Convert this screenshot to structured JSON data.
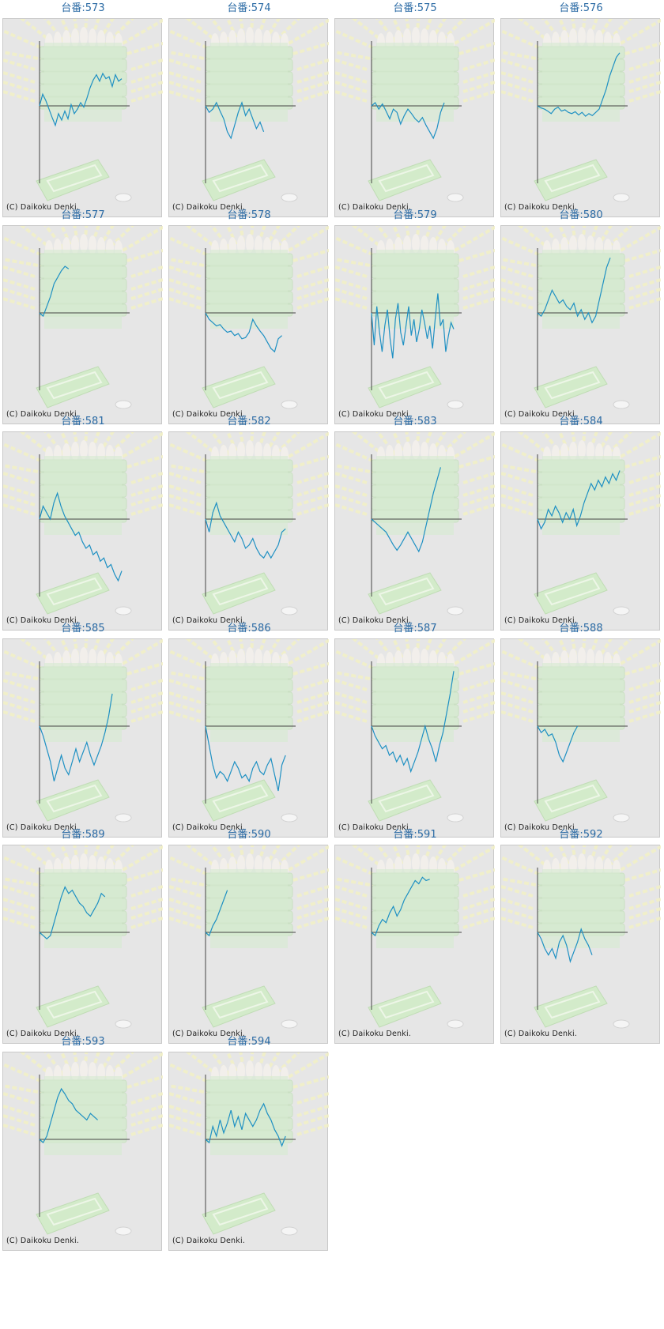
{
  "copyright": "(C) Daikoku Denki.",
  "colors": {
    "line": "#1e90c3",
    "axis": "#444444",
    "title": "#2a6aa4",
    "panel": "#e6e6e6"
  },
  "chart_data": [
    {
      "type": "line",
      "title": "台番:573",
      "y": [
        0,
        18,
        8,
        -5,
        -18,
        -30,
        -12,
        -22,
        -8,
        -20,
        2,
        -12,
        -5,
        5,
        -2,
        12,
        28,
        40,
        48,
        38,
        50,
        42,
        45,
        30,
        48,
        38,
        42
      ]
    },
    {
      "type": "line",
      "title": "台番:574",
      "y": [
        0,
        -10,
        -5,
        5,
        -8,
        -20,
        -40,
        -50,
        -30,
        -10,
        5,
        -15,
        -5,
        -20,
        -35,
        -25,
        -40
      ]
    },
    {
      "type": "line",
      "title": "台番:575",
      "y": [
        0,
        5,
        -5,
        3,
        -8,
        -20,
        -5,
        -10,
        -28,
        -15,
        -5,
        -12,
        -20,
        -25,
        -18,
        -30,
        -40,
        -50,
        -35,
        -10,
        5
      ]
    },
    {
      "type": "line",
      "title": "台番:576",
      "y": [
        0,
        -3,
        -5,
        -8,
        -12,
        -5,
        -2,
        -8,
        -6,
        -10,
        -12,
        -9,
        -14,
        -10,
        -16,
        -12,
        -15,
        -10,
        -5,
        10,
        25,
        45,
        60,
        75,
        82
      ]
    },
    {
      "type": "line",
      "title": "台番:577",
      "y": [
        0,
        -5,
        10,
        25,
        45,
        55,
        65,
        72,
        68
      ]
    },
    {
      "type": "line",
      "title": "台番:578",
      "y": [
        0,
        -10,
        -15,
        -20,
        -18,
        -25,
        -30,
        -28,
        -35,
        -32,
        -40,
        -38,
        -30,
        -10,
        -20,
        -28,
        -35,
        -45,
        -55,
        -60,
        -40,
        -35
      ]
    },
    {
      "type": "line",
      "title": "台番:579",
      "y": [
        0,
        -50,
        10,
        -30,
        -60,
        -20,
        5,
        -40,
        -70,
        -10,
        15,
        -30,
        -50,
        -20,
        10,
        -35,
        -10,
        -45,
        -25,
        5,
        -15,
        -40,
        -20,
        -55,
        -10,
        30,
        -20,
        -10,
        -60,
        -35,
        -15,
        -25
      ]
    },
    {
      "type": "line",
      "title": "台番:580",
      "y": [
        0,
        -5,
        5,
        20,
        35,
        25,
        15,
        20,
        10,
        5,
        15,
        -5,
        5,
        -10,
        0,
        -15,
        -5,
        20,
        45,
        70,
        85
      ]
    },
    {
      "type": "line",
      "title": "台番:581",
      "y": [
        0,
        20,
        10,
        0,
        25,
        40,
        20,
        5,
        -5,
        -15,
        -25,
        -20,
        -35,
        -45,
        -40,
        -55,
        -50,
        -65,
        -60,
        -75,
        -70,
        -85,
        -95,
        -80
      ]
    },
    {
      "type": "line",
      "title": "台番:582",
      "y": [
        0,
        -20,
        10,
        25,
        5,
        -5,
        -15,
        -25,
        -35,
        -20,
        -30,
        -45,
        -40,
        -30,
        -45,
        -55,
        -60,
        -50,
        -60,
        -50,
        -40,
        -20,
        -15
      ]
    },
    {
      "type": "line",
      "title": "台番:583",
      "y": [
        0,
        -5,
        -10,
        -15,
        -20,
        -30,
        -40,
        -48,
        -40,
        -30,
        -20,
        -30,
        -40,
        -50,
        -35,
        -10,
        15,
        40,
        60,
        80
      ]
    },
    {
      "type": "line",
      "title": "台番:584",
      "y": [
        0,
        -15,
        -5,
        15,
        5,
        20,
        10,
        -5,
        10,
        0,
        15,
        -10,
        5,
        25,
        40,
        55,
        45,
        60,
        50,
        65,
        55,
        70,
        60,
        75
      ]
    },
    {
      "type": "line",
      "title": "台番:585",
      "y": [
        0,
        -15,
        -35,
        -55,
        -85,
        -65,
        -45,
        -65,
        -75,
        -55,
        -35,
        -55,
        -40,
        -25,
        -45,
        -60,
        -45,
        -30,
        -10,
        15,
        50
      ]
    },
    {
      "type": "line",
      "title": "台番:586",
      "y": [
        0,
        -30,
        -60,
        -80,
        -70,
        -75,
        -85,
        -70,
        -55,
        -65,
        -80,
        -75,
        -85,
        -65,
        -55,
        -70,
        -75,
        -60,
        -50,
        -75,
        -100,
        -60,
        -45
      ]
    },
    {
      "type": "line",
      "title": "台番:587",
      "y": [
        0,
        -15,
        -25,
        -35,
        -30,
        -45,
        -40,
        -55,
        -45,
        -60,
        -50,
        -70,
        -55,
        -40,
        -20,
        0,
        -20,
        -35,
        -55,
        -30,
        -10,
        20,
        50,
        85
      ]
    },
    {
      "type": "line",
      "title": "台番:588",
      "y": [
        0,
        -10,
        -5,
        -15,
        -12,
        -25,
        -45,
        -55,
        -40,
        -25,
        -10,
        0
      ]
    },
    {
      "type": "line",
      "title": "台番:589",
      "y": [
        0,
        -5,
        -10,
        -5,
        15,
        35,
        55,
        70,
        60,
        65,
        55,
        45,
        40,
        30,
        25,
        35,
        45,
        60,
        55
      ]
    },
    {
      "type": "line",
      "title": "台番:590",
      "y": [
        0,
        -5,
        10,
        20,
        35,
        50,
        65
      ]
    },
    {
      "type": "line",
      "title": "台番:591",
      "y": [
        0,
        -5,
        10,
        20,
        15,
        30,
        40,
        25,
        35,
        50,
        60,
        70,
        80,
        75,
        85,
        80,
        82
      ]
    },
    {
      "type": "line",
      "title": "台番:592",
      "y": [
        0,
        -10,
        -25,
        -35,
        -25,
        -40,
        -15,
        -5,
        -20,
        -45,
        -30,
        -15,
        5,
        -10,
        -20,
        -35
      ]
    },
    {
      "type": "line",
      "title": "台番:593",
      "y": [
        0,
        -5,
        5,
        25,
        45,
        65,
        78,
        70,
        60,
        55,
        45,
        40,
        35,
        30,
        40,
        35,
        30
      ]
    },
    {
      "type": "line",
      "title": "台番:594",
      "y": [
        0,
        -5,
        20,
        5,
        30,
        10,
        25,
        45,
        20,
        35,
        15,
        40,
        30,
        20,
        30,
        45,
        55,
        40,
        30,
        15,
        5,
        -10,
        5
      ]
    }
  ]
}
